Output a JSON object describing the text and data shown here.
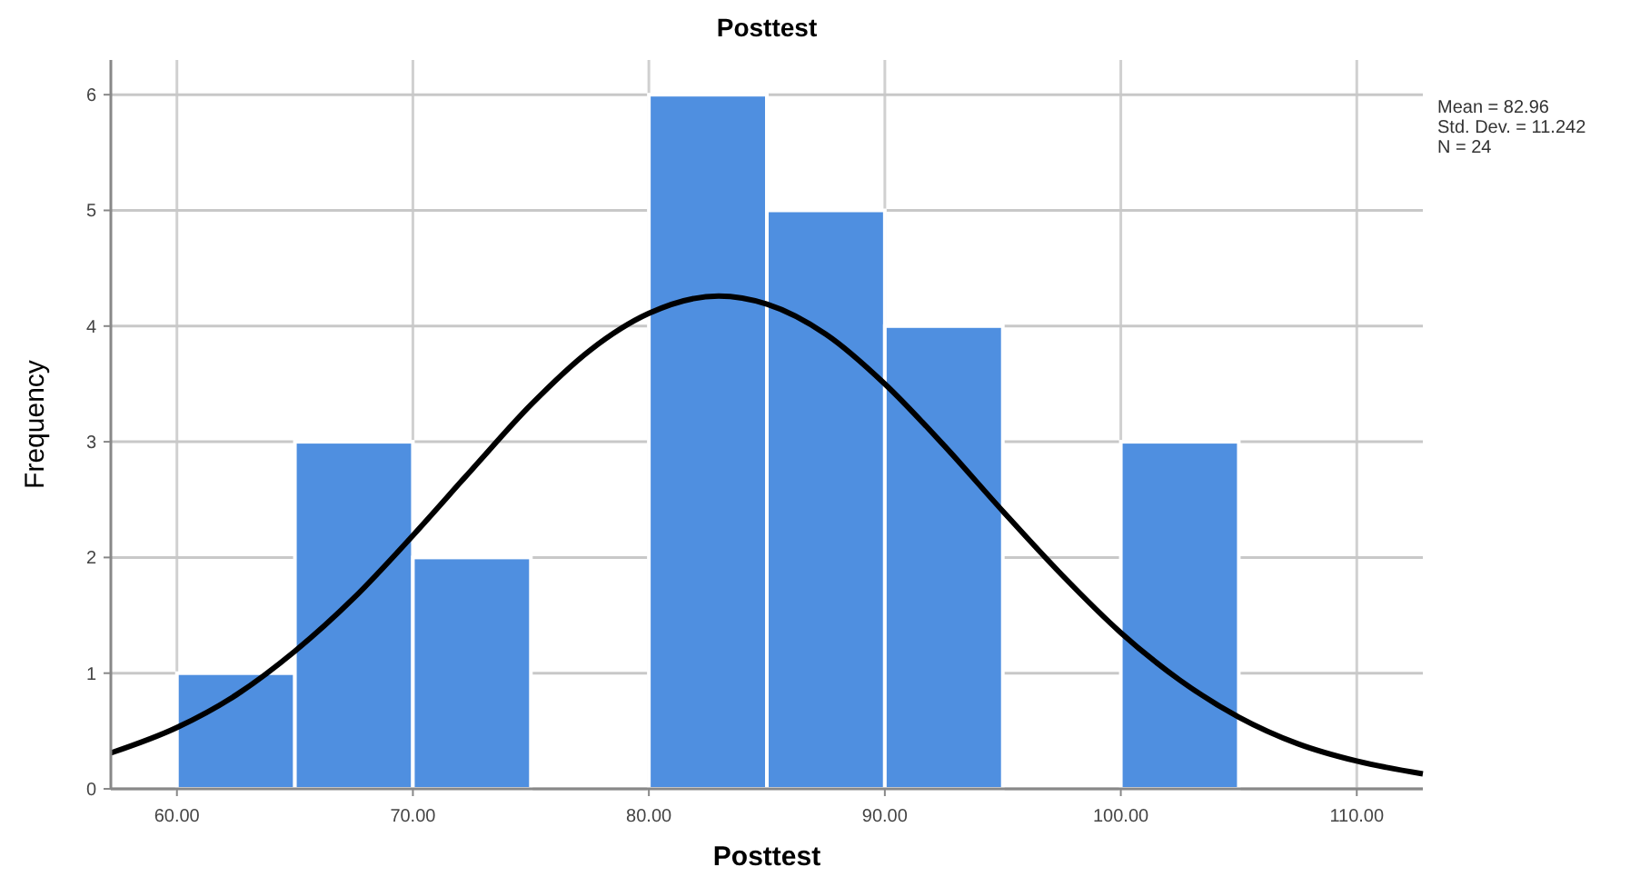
{
  "chart_data": {
    "type": "histogram",
    "title": "Posttest",
    "xlabel": "Posttest",
    "ylabel": "Frequency",
    "annotations": [
      "Mean = 82.96",
      "Std. Dev. = 11.242",
      "N = 24"
    ],
    "series": [
      {
        "color": "#4f8fe0",
        "bins": [
          60,
          65,
          70,
          75,
          80,
          85,
          90,
          95,
          100,
          105
        ],
        "values": [
          1,
          3,
          2,
          0,
          6,
          5,
          4,
          0,
          3
        ]
      },
      {
        "type": "line",
        "color": "#000000",
        "x": [
          57.2,
          60,
          62.5,
          65,
          67.5,
          70,
          72.5,
          75,
          77.5,
          80,
          82.96,
          85,
          87.5,
          90,
          92.5,
          95,
          97.5,
          100,
          102.5,
          105,
          107.5,
          110,
          112.8
        ],
        "values": [
          0.31,
          0.53,
          0.81,
          1.19,
          1.65,
          2.19,
          2.76,
          3.32,
          3.79,
          4.11,
          4.26,
          4.19,
          3.93,
          3.5,
          2.97,
          2.4,
          1.85,
          1.35,
          0.94,
          0.62,
          0.39,
          0.24,
          0.13
        ]
      }
    ],
    "xlim": [
      57.2,
      112.8
    ],
    "ylim": [
      0,
      6.3
    ],
    "xticks": [
      {
        "value": 60,
        "label": "60.00"
      },
      {
        "value": 70,
        "label": "70.00"
      },
      {
        "value": 80,
        "label": "80.00"
      },
      {
        "value": 90,
        "label": "90.00"
      },
      {
        "value": 100,
        "label": "100.00"
      },
      {
        "value": 110,
        "label": "110.00"
      }
    ],
    "yticks": [
      0,
      1,
      2,
      3,
      4,
      5,
      6
    ],
    "grid": true,
    "marker": "none",
    "line_style": "solid"
  }
}
